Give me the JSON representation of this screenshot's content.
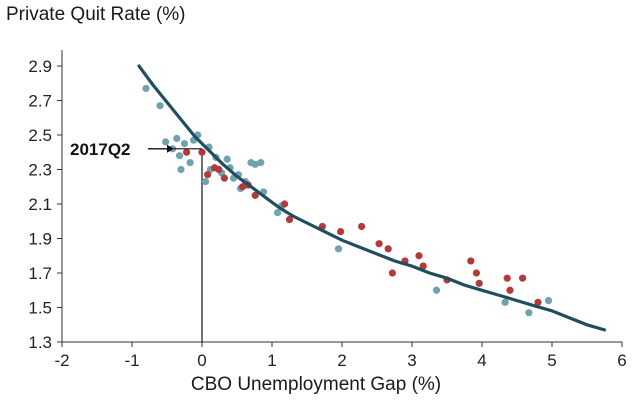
{
  "chart_data": {
    "type": "scatter",
    "title": "Private Quit Rate (%)",
    "xlabel": "CBO Unemployment Gap (%)",
    "ylabel": "",
    "xlim": [
      -2,
      6
    ],
    "ylim": [
      1.3,
      3.0
    ],
    "x_ticks": [
      "-2",
      "-1",
      "0",
      "1",
      "2",
      "3",
      "4",
      "5",
      "6"
    ],
    "y_ticks": [
      "1.3",
      "1.5",
      "1.7",
      "1.9",
      "2.1",
      "2.3",
      "2.5",
      "2.7",
      "2.9"
    ],
    "grid": false,
    "legend": "none",
    "colors": {
      "blue_points": "#6fa3ad",
      "red_points": "#b23a3a",
      "curve": "#1f4e5f",
      "axis": "#333333"
    },
    "series": [
      {
        "color": "blue",
        "points": [
          [
            -0.8,
            2.77
          ],
          [
            -0.6,
            2.67
          ],
          [
            -0.52,
            2.46
          ],
          [
            -0.42,
            2.42
          ],
          [
            -0.36,
            2.48
          ],
          [
            -0.32,
            2.38
          ],
          [
            -0.3,
            2.3
          ],
          [
            -0.25,
            2.45
          ],
          [
            -0.17,
            2.34
          ],
          [
            -0.12,
            2.47
          ],
          [
            -0.06,
            2.5
          ],
          [
            0.05,
            2.23
          ],
          [
            0.1,
            2.43
          ],
          [
            0.12,
            2.3
          ],
          [
            0.2,
            2.37
          ],
          [
            0.28,
            2.28
          ],
          [
            0.36,
            2.36
          ],
          [
            0.4,
            2.31
          ],
          [
            0.45,
            2.25
          ],
          [
            0.52,
            2.27
          ],
          [
            0.55,
            2.19
          ],
          [
            0.62,
            2.23
          ],
          [
            0.7,
            2.34
          ],
          [
            0.76,
            2.33
          ],
          [
            0.84,
            2.34
          ],
          [
            0.88,
            2.17
          ],
          [
            1.08,
            2.05
          ],
          [
            1.14,
            2.09
          ],
          [
            1.95,
            1.84
          ],
          [
            3.35,
            1.6
          ],
          [
            4.33,
            1.53
          ],
          [
            4.67,
            1.47
          ],
          [
            4.95,
            1.54
          ]
        ]
      },
      {
        "color": "red",
        "points": [
          [
            -0.22,
            2.4
          ],
          [
            0.0,
            2.4
          ],
          [
            0.08,
            2.27
          ],
          [
            0.18,
            2.31
          ],
          [
            0.24,
            2.3
          ],
          [
            0.32,
            2.25
          ],
          [
            0.58,
            2.2
          ],
          [
            0.66,
            2.21
          ],
          [
            0.76,
            2.15
          ],
          [
            1.18,
            2.1
          ],
          [
            1.25,
            2.01
          ],
          [
            1.72,
            1.97
          ],
          [
            1.98,
            1.94
          ],
          [
            2.28,
            1.97
          ],
          [
            2.53,
            1.87
          ],
          [
            2.66,
            1.84
          ],
          [
            2.72,
            1.7
          ],
          [
            2.9,
            1.77
          ],
          [
            3.1,
            1.8
          ],
          [
            3.16,
            1.74
          ],
          [
            3.5,
            1.66
          ],
          [
            3.84,
            1.77
          ],
          [
            3.92,
            1.7
          ],
          [
            3.96,
            1.64
          ],
          [
            4.36,
            1.67
          ],
          [
            4.4,
            1.6
          ],
          [
            4.58,
            1.67
          ],
          [
            4.8,
            1.53
          ]
        ]
      }
    ],
    "fit_curve": {
      "x": [
        -0.9,
        -0.7,
        -0.5,
        -0.3,
        -0.1,
        0.1,
        0.3,
        0.5,
        0.7,
        0.9,
        1.1,
        1.3,
        1.5,
        1.75,
        2.0,
        2.25,
        2.5,
        2.75,
        3.0,
        3.25,
        3.5,
        3.75,
        4.0,
        4.25,
        4.5,
        4.75,
        5.0,
        5.25,
        5.5,
        5.75
      ],
      "y": [
        2.9,
        2.79,
        2.69,
        2.59,
        2.49,
        2.41,
        2.33,
        2.26,
        2.2,
        2.14,
        2.08,
        2.03,
        1.99,
        1.94,
        1.89,
        1.85,
        1.81,
        1.77,
        1.74,
        1.7,
        1.67,
        1.63,
        1.6,
        1.57,
        1.54,
        1.51,
        1.48,
        1.44,
        1.4,
        1.37
      ]
    },
    "annotation": {
      "text": "2017Q2",
      "x": 0.0,
      "y": 2.42
    },
    "reference_line_x": 0
  }
}
